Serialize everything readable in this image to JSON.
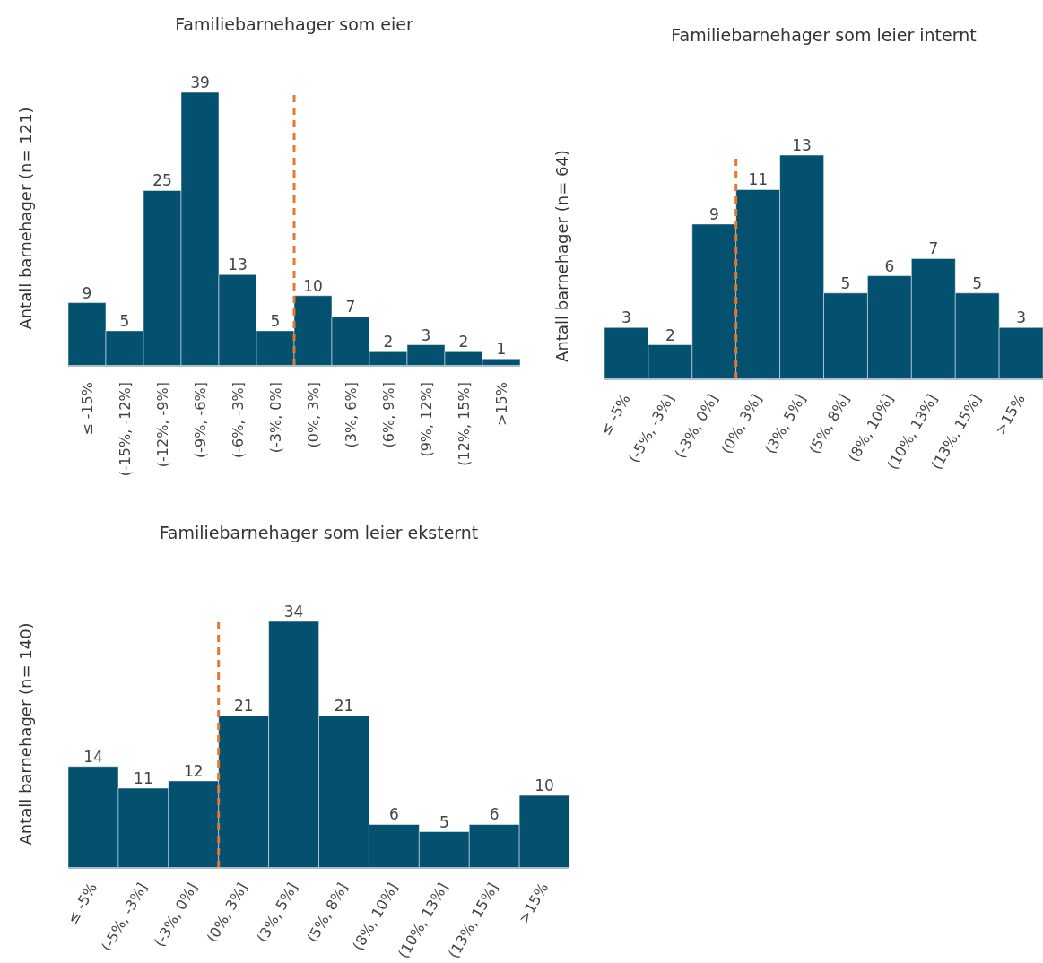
{
  "chart_data": [
    {
      "type": "bar",
      "title": "Familiebarnehager som eier",
      "ylabel": "Antall barnehager (n= 121)",
      "data_labels": true,
      "color": "#03506f",
      "categories": [
        "≤ -15%",
        "(-15%, -12%]",
        "(-12%, -9%]",
        "(-9%, -6%]",
        "(-6%, -3%]",
        "(-3%, 0%]",
        "(0%, 3%]",
        "(3%, 6%]",
        "(6%, 9%]",
        "(9%, 12%]",
        "(12%, 15%]",
        ">15%"
      ],
      "values": [
        9,
        5,
        25,
        39,
        13,
        5,
        10,
        7,
        2,
        3,
        2,
        1
      ],
      "ref_lines": [
        {
          "axis": "x",
          "value": "(0%, 3%]",
          "color": "#e8762d",
          "line_style": "dashed"
        }
      ]
    },
    {
      "type": "bar",
      "title": "Familiebarnehager som leier internt",
      "ylabel": "Antall barnehager (n= 64)",
      "data_labels": true,
      "color": "#03506f",
      "categories": [
        "≤ -5%",
        "(-5%, -3%]",
        "(-3%, 0%]",
        "(0%, 3%]",
        "(3%, 5%]",
        "(5%, 8%]",
        "(8%, 10%]",
        "(10%, 13%]",
        "(13%, 15%]",
        ">15%"
      ],
      "values": [
        3,
        2,
        9,
        11,
        13,
        5,
        6,
        7,
        5,
        3
      ],
      "ref_lines": [
        {
          "axis": "x",
          "value": "(0%, 3%]",
          "color": "#e8762d",
          "line_style": "dashed"
        }
      ]
    },
    {
      "type": "bar",
      "title": "Familiebarnehager som leier eksternt",
      "ylabel": "Antall barnehager (n= 140)",
      "data_labels": true,
      "color": "#03506f",
      "categories": [
        "≤ -5%",
        "(-5%, -3%]",
        "(-3%, 0%]",
        "(0%, 3%]",
        "(3%, 5%]",
        "(5%, 8%]",
        "(8%, 10%]",
        "(10%, 13%]",
        "(13%, 15%]",
        ">15%"
      ],
      "values": [
        14,
        11,
        12,
        21,
        34,
        21,
        6,
        5,
        6,
        10
      ],
      "ref_lines": [
        {
          "axis": "x",
          "value": "(0%, 3%]",
          "color": "#e8762d",
          "line_style": "dashed"
        }
      ]
    }
  ]
}
